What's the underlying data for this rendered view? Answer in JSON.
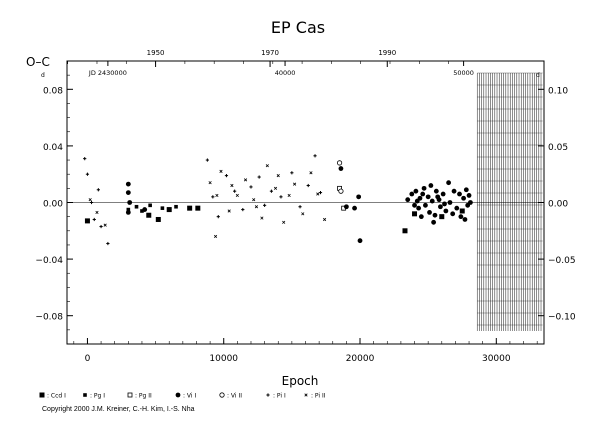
{
  "chart_data": {
    "type": "scatter",
    "title": "EP Cas",
    "ylabel": "O–C",
    "ylabel_superscript": "d",
    "xlabel": "Epoch",
    "xlim": [
      -1500,
      33500
    ],
    "ylim": [
      -0.1,
      0.1
    ],
    "left_y_ticks": [
      "0.08",
      "0.04",
      "0.00",
      "−0.04",
      "−0.08"
    ],
    "left_y_values": [
      0.08,
      0.04,
      0.0,
      -0.04,
      -0.08
    ],
    "right_y_ticks": [
      "0.10",
      "0.05",
      "0.00",
      "−0.05",
      "−0.10"
    ],
    "right_y_values": [
      0.1,
      0.05,
      0.0,
      -0.05,
      -0.1
    ],
    "x_ticks": [
      "0",
      "10000",
      "20000",
      "30000"
    ],
    "x_tick_values": [
      0,
      10000,
      20000,
      30000
    ],
    "top_year_ticks": [
      "1950",
      "1970",
      "1990"
    ],
    "top_year_epochs": [
      5000,
      13400,
      22000
    ],
    "jd_labels": [
      {
        "text": "JD 2430000",
        "epoch": 1500
      },
      {
        "text": "40000",
        "epoch": 14500
      },
      {
        "text": "50000",
        "epoch": 27600
      }
    ],
    "zero_line": 0.0,
    "future_band": [
      28600,
      33400
    ],
    "grid": false,
    "series": [
      {
        "name": ": Ccd I",
        "marker": "square-filled",
        "points": [
          [
            0,
            -0.013
          ],
          [
            4500,
            -0.009
          ],
          [
            5200,
            -0.012
          ],
          [
            6000,
            -0.005
          ],
          [
            7500,
            -0.004
          ],
          [
            8100,
            -0.004
          ],
          [
            23300,
            -0.02
          ],
          [
            24000,
            -0.008
          ],
          [
            26000,
            -0.01
          ],
          [
            27500,
            -0.006
          ]
        ]
      },
      {
        "name": ": Pg I",
        "marker": "square-small",
        "points": [
          [
            3000,
            -0.005
          ],
          [
            3600,
            -0.003
          ],
          [
            4000,
            -0.006
          ],
          [
            4600,
            -0.002
          ],
          [
            5500,
            -0.004
          ],
          [
            6500,
            -0.003
          ]
        ]
      },
      {
        "name": ": Pg II",
        "marker": "square-open",
        "points": [
          [
            18500,
            0.01
          ],
          [
            18800,
            -0.004
          ]
        ]
      },
      {
        "name": ": Vi I",
        "marker": "circle-filled",
        "points": [
          [
            3000,
            0.013
          ],
          [
            3000,
            0.007
          ],
          [
            3000,
            -0.007
          ],
          [
            3100,
            0.0
          ],
          [
            4200,
            -0.005
          ],
          [
            18600,
            0.024
          ],
          [
            19000,
            -0.003
          ],
          [
            19600,
            -0.004
          ],
          [
            19900,
            0.004
          ],
          [
            20000,
            -0.027
          ],
          [
            23800,
            0.006
          ],
          [
            24000,
            -0.002
          ],
          [
            24100,
            0.008
          ],
          [
            24300,
            -0.004
          ],
          [
            24400,
            0.003
          ],
          [
            24600,
            0.006
          ],
          [
            24700,
            0.01
          ],
          [
            24800,
            -0.002
          ],
          [
            25000,
            0.004
          ],
          [
            25100,
            -0.007
          ],
          [
            25200,
            0.012
          ],
          [
            25300,
            0.001
          ],
          [
            25500,
            -0.009
          ],
          [
            25600,
            0.008
          ],
          [
            25800,
            0.002
          ],
          [
            25900,
            -0.003
          ],
          [
            26100,
            0.006
          ],
          [
            26300,
            -0.006
          ],
          [
            26500,
            0.014
          ],
          [
            26600,
            0.0
          ],
          [
            26900,
            0.008
          ],
          [
            27100,
            -0.004
          ],
          [
            27300,
            0.006
          ],
          [
            27400,
            -0.01
          ],
          [
            27600,
            0.003
          ],
          [
            27800,
            0.009
          ],
          [
            27900,
            -0.002
          ],
          [
            28000,
            0.005
          ],
          [
            24500,
            -0.01
          ],
          [
            23500,
            0.002
          ],
          [
            25400,
            -0.014
          ],
          [
            26800,
            -0.008
          ],
          [
            27700,
            -0.012
          ],
          [
            24200,
            0.001
          ],
          [
            25700,
            0.004
          ],
          [
            26200,
            -0.001
          ],
          [
            28100,
            0.0
          ]
        ]
      },
      {
        "name": ": Vi II",
        "marker": "circle-open",
        "points": [
          [
            18500,
            0.028
          ],
          [
            18600,
            0.008
          ]
        ]
      },
      {
        "name": ": Pi I",
        "marker": "plus",
        "points": [
          [
            -200,
            0.031
          ],
          [
            0,
            0.02
          ],
          [
            300,
            0.0
          ],
          [
            500,
            -0.012
          ],
          [
            800,
            0.009
          ],
          [
            1000,
            -0.017
          ],
          [
            1500,
            -0.029
          ],
          [
            8800,
            0.03
          ],
          [
            9200,
            0.004
          ],
          [
            9600,
            -0.01
          ],
          [
            10200,
            0.019
          ],
          [
            10800,
            0.008
          ],
          [
            11400,
            -0.005
          ],
          [
            12000,
            0.011
          ],
          [
            12600,
            0.018
          ],
          [
            13000,
            -0.002
          ],
          [
            13500,
            0.008
          ],
          [
            14200,
            0.004
          ],
          [
            15000,
            0.021
          ],
          [
            15600,
            -0.003
          ],
          [
            16200,
            0.012
          ],
          [
            16700,
            0.033
          ],
          [
            17100,
            0.007
          ]
        ]
      },
      {
        "name": ": Pi II",
        "marker": "cross",
        "points": [
          [
            200,
            0.002
          ],
          [
            700,
            -0.007
          ],
          [
            1300,
            -0.016
          ],
          [
            9000,
            0.014
          ],
          [
            9400,
            -0.024
          ],
          [
            9800,
            0.022
          ],
          [
            10400,
            -0.006
          ],
          [
            11000,
            0.005
          ],
          [
            11600,
            0.016
          ],
          [
            12200,
            0.002
          ],
          [
            12800,
            -0.011
          ],
          [
            13200,
            0.026
          ],
          [
            13800,
            0.01
          ],
          [
            14400,
            -0.014
          ],
          [
            14800,
            0.005
          ],
          [
            15200,
            0.013
          ],
          [
            15800,
            -0.008
          ],
          [
            16400,
            0.021
          ],
          [
            16900,
            0.006
          ],
          [
            17400,
            -0.012
          ],
          [
            9500,
            0.005
          ],
          [
            10600,
            0.012
          ],
          [
            12400,
            -0.003
          ],
          [
            14000,
            0.019
          ]
        ]
      }
    ]
  },
  "copyright": "Copyright 2000 J.M. Kreiner, C.-H. Kim, I.-S. Nha"
}
